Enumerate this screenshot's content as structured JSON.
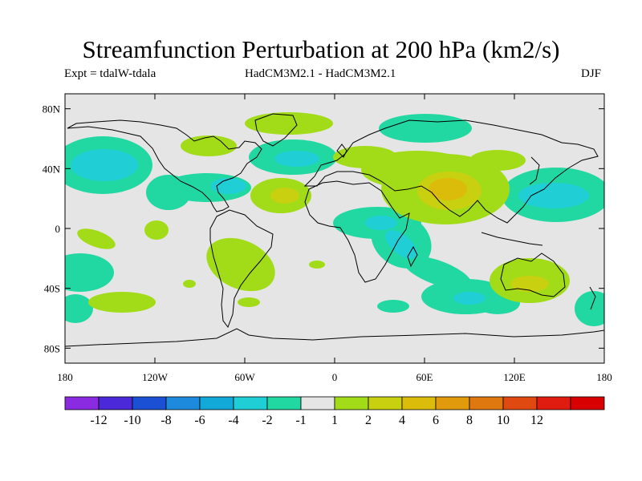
{
  "title": "Streamfunction Perturbation at 200 hPa (km2/s)",
  "subtitle_left": "Expt = tdalW-tdala",
  "subtitle_center": "HadCM3M2.1 - HadCM3M2.1",
  "subtitle_right": "DJF",
  "lat_ticks": [
    {
      "label": "80N",
      "value": 80
    },
    {
      "label": "40N",
      "value": 40
    },
    {
      "label": "0",
      "value": 0
    },
    {
      "label": "40S",
      "value": -40
    },
    {
      "label": "80S",
      "value": -80
    }
  ],
  "lon_ticks": [
    {
      "label": "180",
      "value": -180
    },
    {
      "label": "120W",
      "value": -120
    },
    {
      "label": "60W",
      "value": -60
    },
    {
      "label": "0",
      "value": 0
    },
    {
      "label": "60E",
      "value": 60
    },
    {
      "label": "120E",
      "value": 120
    },
    {
      "label": "180",
      "value": 180
    }
  ],
  "colorbar": {
    "colors": [
      "#8a2be2",
      "#4b28d8",
      "#1c50d4",
      "#1e8ade",
      "#12a8d8",
      "#20cfd6",
      "#22d8a2",
      "#e5e5e5",
      "#a2dc18",
      "#c8d010",
      "#dcbc0a",
      "#e09a0c",
      "#e07810",
      "#e04a10",
      "#e01c10",
      "#d80000"
    ],
    "labels": [
      "-12",
      "-10",
      "-8",
      "-6",
      "-4",
      "-2",
      "-1",
      "1",
      "2",
      "4",
      "6",
      "8",
      "10",
      "12"
    ]
  },
  "colors": {
    "background": "#e5e5e5",
    "neg1": "#22d8a2",
    "neg2": "#20cfd6",
    "neg4": "#12a8d8",
    "pos1": "#a2dc18",
    "pos2": "#c8d010",
    "pos4": "#dcbc0a"
  }
}
